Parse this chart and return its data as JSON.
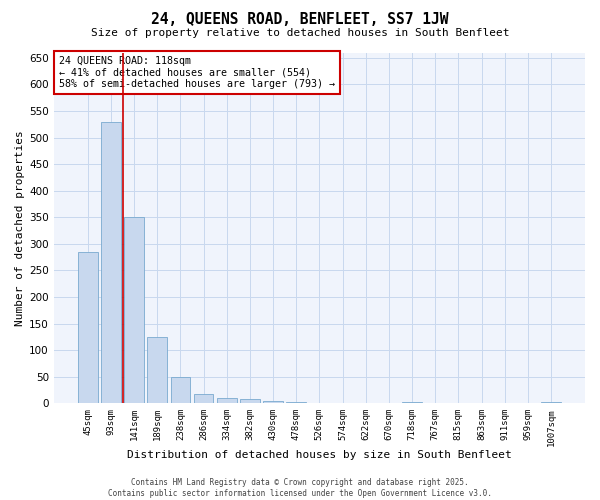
{
  "title": "24, QUEENS ROAD, BENFLEET, SS7 1JW",
  "subtitle": "Size of property relative to detached houses in South Benfleet",
  "xlabel": "Distribution of detached houses by size in South Benfleet",
  "ylabel": "Number of detached properties",
  "categories": [
    "45sqm",
    "93sqm",
    "141sqm",
    "189sqm",
    "238sqm",
    "286sqm",
    "334sqm",
    "382sqm",
    "430sqm",
    "478sqm",
    "526sqm",
    "574sqm",
    "622sqm",
    "670sqm",
    "718sqm",
    "767sqm",
    "815sqm",
    "863sqm",
    "911sqm",
    "959sqm",
    "1007sqm"
  ],
  "values": [
    285,
    530,
    350,
    125,
    50,
    18,
    10,
    8,
    5,
    3,
    0,
    0,
    0,
    0,
    2,
    0,
    0,
    0,
    0,
    0,
    3
  ],
  "bar_color": "#c8d8ee",
  "bar_edge_color": "#7aaad0",
  "grid_color": "#c8d8ee",
  "background_color": "#ffffff",
  "plot_bg_color": "#f0f4fc",
  "vline_color": "#cc0000",
  "vline_x": 1.5,
  "annotation_text": "24 QUEENS ROAD: 118sqm\n← 41% of detached houses are smaller (554)\n58% of semi-detached houses are larger (793) →",
  "annotation_box_facecolor": "#ffffff",
  "annotation_box_edgecolor": "#cc0000",
  "footer_line1": "Contains HM Land Registry data © Crown copyright and database right 2025.",
  "footer_line2": "Contains public sector information licensed under the Open Government Licence v3.0.",
  "ylim": [
    0,
    660
  ],
  "yticks": [
    0,
    50,
    100,
    150,
    200,
    250,
    300,
    350,
    400,
    450,
    500,
    550,
    600,
    650
  ]
}
